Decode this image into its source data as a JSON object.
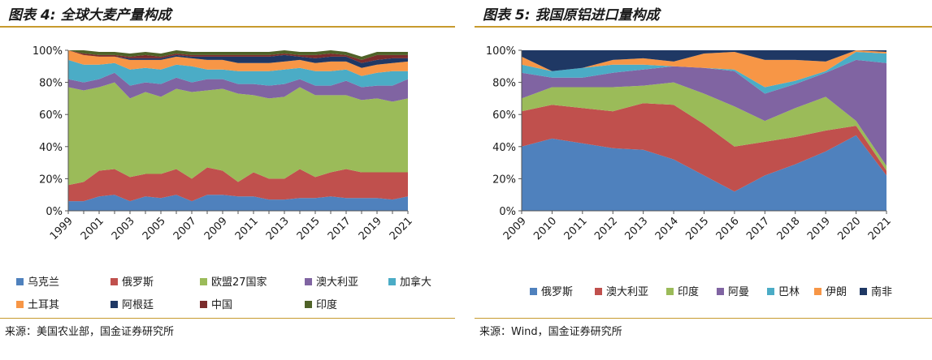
{
  "left": {
    "title": "图表 4:  全球大麦产量构成",
    "source": "来源：美国农业部，国金证券研究所",
    "chart_data": {
      "type": "area",
      "stacked": true,
      "x": [
        "1999",
        "2000",
        "2001",
        "2002",
        "2003",
        "2004",
        "2005",
        "2006",
        "2007",
        "2008",
        "2009",
        "2010",
        "2011",
        "2012",
        "2013",
        "2014",
        "2015",
        "2016",
        "2017",
        "2018",
        "2019",
        "2020",
        "2021"
      ],
      "x_tick_labels": [
        "1999",
        "2001",
        "2003",
        "2005",
        "2007",
        "2009",
        "2011",
        "2013",
        "2015",
        "2017",
        "2019",
        "2021"
      ],
      "y_tick_labels": [
        "0%",
        "20%",
        "40%",
        "60%",
        "80%",
        "100%"
      ],
      "ylim": [
        0,
        100
      ],
      "grid": false,
      "legend_position": "bottom",
      "series": [
        {
          "name": "乌克兰",
          "color": "#4f81bd",
          "values": [
            6,
            6,
            9,
            10,
            6,
            9,
            8,
            10,
            6,
            10,
            10,
            9,
            9,
            7,
            7,
            8,
            8,
            9,
            8,
            8,
            8,
            7,
            9
          ]
        },
        {
          "name": "俄罗斯",
          "color": "#c0504d",
          "values": [
            10,
            12,
            16,
            16,
            15,
            14,
            15,
            16,
            14,
            17,
            15,
            9,
            15,
            13,
            13,
            18,
            13,
            15,
            18,
            16,
            16,
            17,
            15
          ]
        },
        {
          "name": "欧盟27国家",
          "color": "#9bbb59",
          "values": [
            61,
            57,
            52,
            54,
            49,
            51,
            48,
            50,
            54,
            48,
            51,
            55,
            48,
            50,
            51,
            51,
            51,
            48,
            46,
            45,
            46,
            44,
            46
          ]
        },
        {
          "name": "澳大利亚",
          "color": "#8064a2",
          "values": [
            5,
            5,
            5,
            6,
            8,
            6,
            8,
            7,
            6,
            7,
            6,
            6,
            7,
            8,
            8,
            5,
            6,
            6,
            9,
            8,
            8,
            10,
            12
          ]
        },
        {
          "name": "加拿大",
          "color": "#4bacc6",
          "values": [
            12,
            11,
            9,
            6,
            10,
            9,
            9,
            8,
            10,
            6,
            6,
            8,
            8,
            9,
            9,
            7,
            9,
            9,
            7,
            7,
            8,
            9,
            5
          ]
        },
        {
          "name": "土耳其",
          "color": "#f79646",
          "values": [
            6,
            6,
            5,
            4,
            6,
            5,
            6,
            5,
            5,
            6,
            6,
            5,
            5,
            5,
            5,
            5,
            5,
            6,
            5,
            5,
            5,
            5,
            6
          ]
        },
        {
          "name": "阿根廷",
          "color": "#1f3864",
          "values": [
            0,
            0,
            0,
            0,
            1,
            1,
            1,
            1,
            1,
            2,
            2,
            4,
            4,
            4,
            4,
            2,
            3,
            3,
            3,
            3,
            3,
            3,
            2
          ]
        },
        {
          "name": "中国",
          "color": "#7b2c2c",
          "values": [
            0,
            1,
            1,
            1,
            1,
            2,
            1,
            1,
            1,
            1,
            1,
            1,
            1,
            1,
            1,
            1,
            2,
            2,
            1,
            2,
            3,
            2,
            2
          ]
        },
        {
          "name": "印度",
          "color": "#4f6228",
          "values": [
            0,
            2,
            2,
            2,
            2,
            2,
            2,
            2,
            2,
            2,
            2,
            2,
            2,
            2,
            2,
            2,
            2,
            2,
            2,
            2,
            2,
            2,
            2
          ]
        }
      ]
    }
  },
  "right": {
    "title": "图表 5:  我国原铝进口量构成",
    "source": "来源：Wind，国金证券研究所",
    "chart_data": {
      "type": "area",
      "stacked": true,
      "x": [
        "2009",
        "2010",
        "2011",
        "2012",
        "2013",
        "2014",
        "2015",
        "2016",
        "2017",
        "2018",
        "2019",
        "2020",
        "2021"
      ],
      "x_tick_labels": [
        "2009",
        "2010",
        "2011",
        "2012",
        "2013",
        "2014",
        "2015",
        "2016",
        "2017",
        "2018",
        "2019",
        "2020",
        "2021"
      ],
      "y_tick_labels": [
        "0%",
        "20%",
        "40%",
        "60%",
        "80%",
        "100%"
      ],
      "ylim": [
        0,
        100
      ],
      "grid": false,
      "legend_position": "bottom",
      "series": [
        {
          "name": "俄罗斯",
          "color": "#4f81bd",
          "values": [
            40,
            45,
            42,
            39,
            38,
            32,
            22,
            12,
            22,
            29,
            37,
            47,
            22
          ]
        },
        {
          "name": "澳大利亚",
          "color": "#c0504d",
          "values": [
            22,
            21,
            22,
            23,
            29,
            34,
            32,
            28,
            21,
            17,
            13,
            6,
            3
          ]
        },
        {
          "name": "印度",
          "color": "#9bbb59",
          "values": [
            8,
            11,
            13,
            15,
            11,
            14,
            19,
            25,
            13,
            18,
            21,
            3,
            3
          ]
        },
        {
          "name": "阿曼",
          "color": "#8064a2",
          "values": [
            16,
            6,
            6,
            9,
            10,
            10,
            16,
            22,
            17,
            15,
            15,
            38,
            64
          ]
        },
        {
          "name": "巴林",
          "color": "#4bacc6",
          "values": [
            5,
            4,
            6,
            5,
            3,
            0,
            0,
            1,
            4,
            2,
            1,
            5,
            6
          ]
        },
        {
          "name": "伊朗",
          "color": "#f79646",
          "values": [
            5,
            0,
            0,
            3,
            4,
            3,
            9,
            11,
            17,
            13,
            6,
            1,
            1
          ]
        },
        {
          "name": "南非",
          "color": "#1f3864",
          "values": [
            4,
            13,
            11,
            6,
            5,
            7,
            2,
            1,
            6,
            6,
            7,
            0,
            1
          ]
        }
      ]
    }
  }
}
